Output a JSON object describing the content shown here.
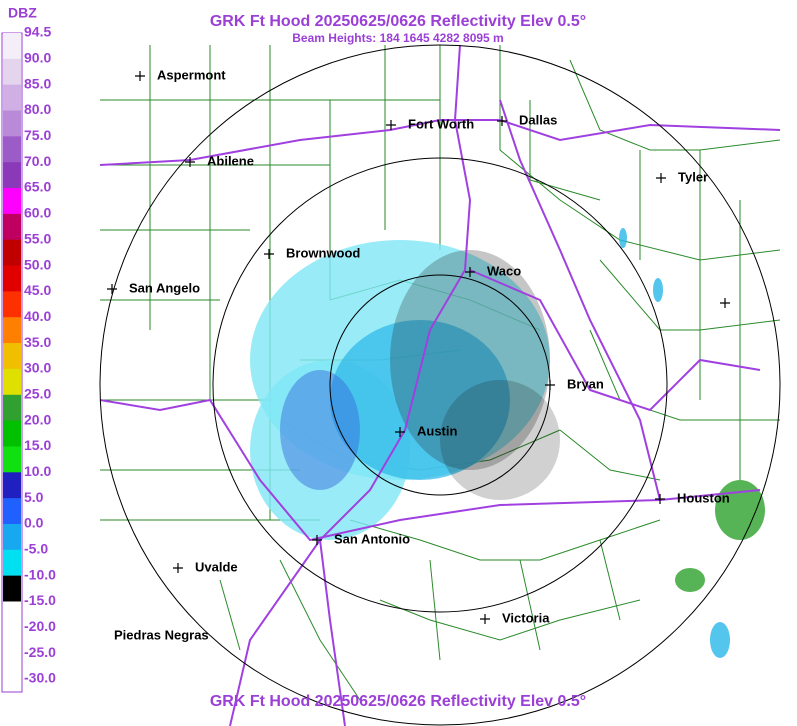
{
  "header": {
    "title": "GRK Ft Hood 20250625/0626 Reflectivity Elev 0.5°",
    "subtitle": "Beam Heights: 184 1645 4282 8095 m"
  },
  "footer": {
    "title": "GRK Ft Hood 20250625/0626 Reflectivity Elev 0.5°"
  },
  "legend": {
    "unit": "DBZ",
    "labels": [
      "94.5",
      "90.0",
      "85.0",
      "80.0",
      "75.0",
      "70.0",
      "65.0",
      "60.0",
      "55.0",
      "50.0",
      "45.0",
      "40.0",
      "35.0",
      "30.0",
      "25.0",
      "20.0",
      "15.0",
      "10.0",
      "5.0",
      "0.0",
      "-5.0",
      "-10.0",
      "-15.0",
      "-20.0",
      "-25.0",
      "-30.0"
    ]
  },
  "cities": [
    "Aspermont",
    "Fort Worth",
    "Dallas",
    "Abilene",
    "Tyler",
    "Brownwood",
    "Waco",
    "San Angelo",
    "Bryan",
    "Austin",
    "Houston",
    "San Antonio",
    "Uvalde",
    "Victoria",
    "Piedras Negras"
  ]
}
